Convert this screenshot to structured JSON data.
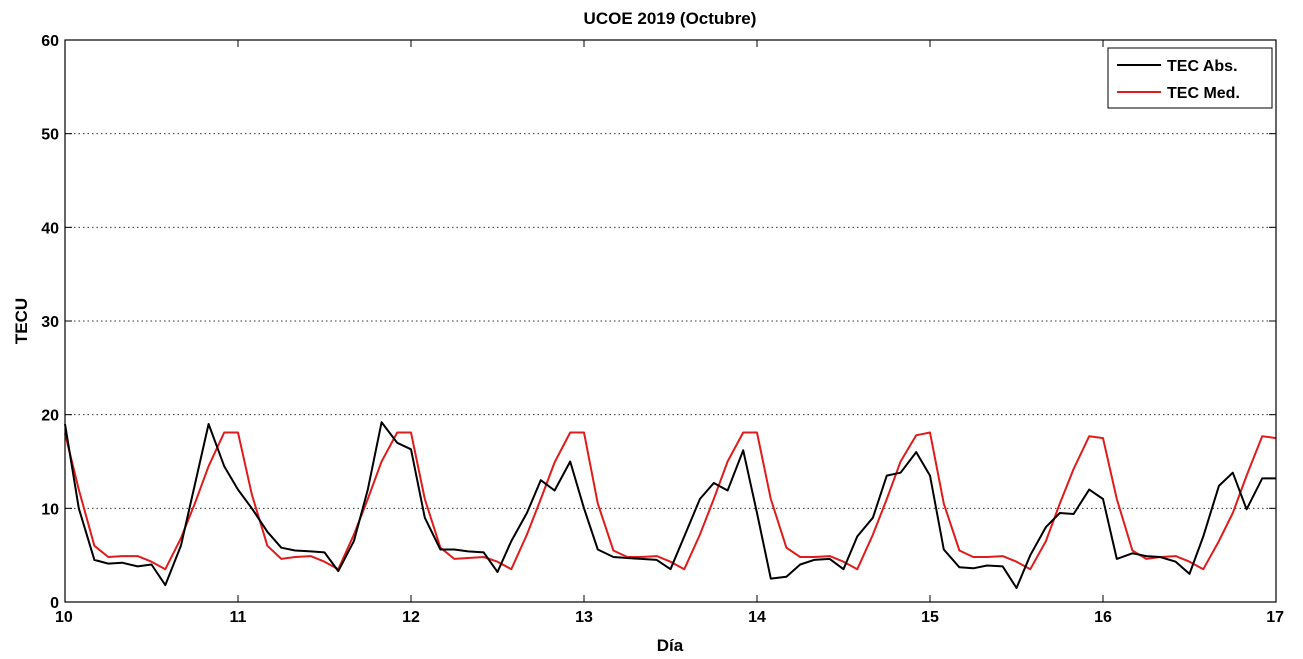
{
  "chart_data": {
    "type": "line",
    "title": "UCOE 2019 (Octubre)",
    "xlabel": "Día",
    "ylabel": "TECU",
    "xlim": [
      10,
      17
    ],
    "ylim": [
      0,
      60
    ],
    "xticks": [
      "10",
      "11",
      "12",
      "13",
      "14",
      "15",
      "16",
      "17"
    ],
    "yticks": [
      "0",
      "10",
      "20",
      "30",
      "40",
      "50",
      "60"
    ],
    "grid": "horizontal dotted",
    "legend": {
      "position": "top-right"
    },
    "series": [
      {
        "name": "TEC Abs.",
        "color": "#000000",
        "x": [
          10.0,
          10.08,
          10.17,
          10.25,
          10.33,
          10.42,
          10.5,
          10.58,
          10.67,
          10.75,
          10.83,
          10.92,
          11.0,
          11.08,
          11.17,
          11.25,
          11.33,
          11.42,
          11.5,
          11.58,
          11.67,
          11.75,
          11.83,
          11.92,
          12.0,
          12.08,
          12.17,
          12.25,
          12.33,
          12.42,
          12.5,
          12.58,
          12.67,
          12.75,
          12.83,
          12.92,
          13.0,
          13.08,
          13.17,
          13.25,
          13.33,
          13.42,
          13.5,
          13.58,
          13.67,
          13.75,
          13.83,
          13.92,
          14.0,
          14.08,
          14.17,
          14.25,
          14.33,
          14.42,
          14.5,
          14.58,
          14.67,
          14.75,
          14.83,
          14.92,
          15.0,
          15.08,
          15.17,
          15.25,
          15.33,
          15.42,
          15.5,
          15.58,
          15.67,
          15.75,
          15.83,
          15.92,
          16.0,
          16.08,
          16.17,
          16.25,
          16.33,
          16.42,
          16.5,
          16.58,
          16.67,
          16.75,
          16.83,
          16.92,
          17.0
        ],
        "values": [
          19.0,
          10.0,
          4.5,
          4.1,
          4.2,
          3.8,
          4.0,
          1.8,
          6.0,
          12.5,
          19.0,
          14.5,
          12.0,
          10.0,
          7.5,
          5.8,
          5.5,
          5.4,
          5.3,
          3.3,
          6.5,
          12.0,
          19.2,
          17.0,
          16.3,
          9.0,
          5.6,
          5.6,
          5.4,
          5.3,
          3.2,
          6.5,
          9.5,
          13.0,
          11.9,
          15.0,
          10.0,
          5.6,
          4.8,
          4.7,
          4.6,
          4.5,
          3.5,
          7.0,
          11.0,
          12.7,
          11.9,
          16.2,
          9.5,
          2.5,
          2.7,
          4.0,
          4.5,
          4.6,
          3.5,
          7.0,
          9.0,
          13.5,
          13.8,
          16.0,
          13.5,
          5.6,
          3.7,
          3.6,
          3.9,
          3.8,
          1.5,
          5.0,
          8.0,
          9.5,
          9.4,
          12.0,
          11.0,
          4.6,
          5.2,
          4.9,
          4.8,
          4.3,
          3.0,
          7.0,
          12.4,
          13.8,
          9.9,
          13.2,
          13.2
        ]
      },
      {
        "name": "TEC Med.",
        "color": "#e01b1b",
        "x": [
          10.0,
          10.08,
          10.17,
          10.25,
          10.33,
          10.42,
          10.5,
          10.58,
          10.67,
          10.75,
          10.83,
          10.92,
          11.0,
          11.08,
          11.17,
          11.25,
          11.33,
          11.42,
          11.5,
          11.58,
          11.67,
          11.75,
          11.83,
          11.92,
          12.0,
          12.08,
          12.17,
          12.25,
          12.33,
          12.42,
          12.5,
          12.58,
          12.67,
          12.75,
          12.83,
          12.92,
          13.0,
          13.08,
          13.17,
          13.25,
          13.33,
          13.42,
          13.5,
          13.58,
          13.67,
          13.75,
          13.83,
          13.92,
          14.0,
          14.08,
          14.17,
          14.25,
          14.33,
          14.42,
          14.5,
          14.58,
          14.67,
          14.75,
          14.83,
          14.92,
          15.0,
          15.08,
          15.17,
          15.25,
          15.33,
          15.42,
          15.5,
          15.58,
          15.67,
          15.75,
          15.83,
          15.92,
          16.0,
          16.08,
          16.17,
          16.25,
          16.33,
          16.42,
          16.5,
          16.58,
          16.67,
          16.75,
          16.83,
          16.92,
          17.0
        ],
        "values": [
          18.0,
          12.0,
          6.0,
          4.8,
          4.9,
          4.9,
          4.3,
          3.5,
          6.8,
          10.5,
          14.5,
          18.1,
          18.1,
          11.5,
          6.0,
          4.6,
          4.8,
          4.9,
          4.3,
          3.5,
          7.2,
          11.0,
          15.0,
          18.1,
          18.1,
          11.0,
          5.8,
          4.6,
          4.7,
          4.8,
          4.3,
          3.5,
          7.2,
          11.0,
          14.9,
          18.1,
          18.1,
          10.5,
          5.5,
          4.8,
          4.8,
          4.9,
          4.3,
          3.5,
          7.2,
          11.0,
          15.0,
          18.1,
          18.1,
          11.0,
          5.8,
          4.8,
          4.8,
          4.9,
          4.3,
          3.5,
          7.2,
          11.0,
          15.0,
          17.8,
          18.1,
          10.5,
          5.5,
          4.8,
          4.8,
          4.9,
          4.3,
          3.5,
          6.5,
          10.5,
          14.2,
          17.7,
          17.5,
          11.0,
          5.5,
          4.6,
          4.8,
          4.9,
          4.3,
          3.5,
          6.5,
          9.5,
          13.5,
          17.7,
          17.5
        ]
      }
    ]
  }
}
